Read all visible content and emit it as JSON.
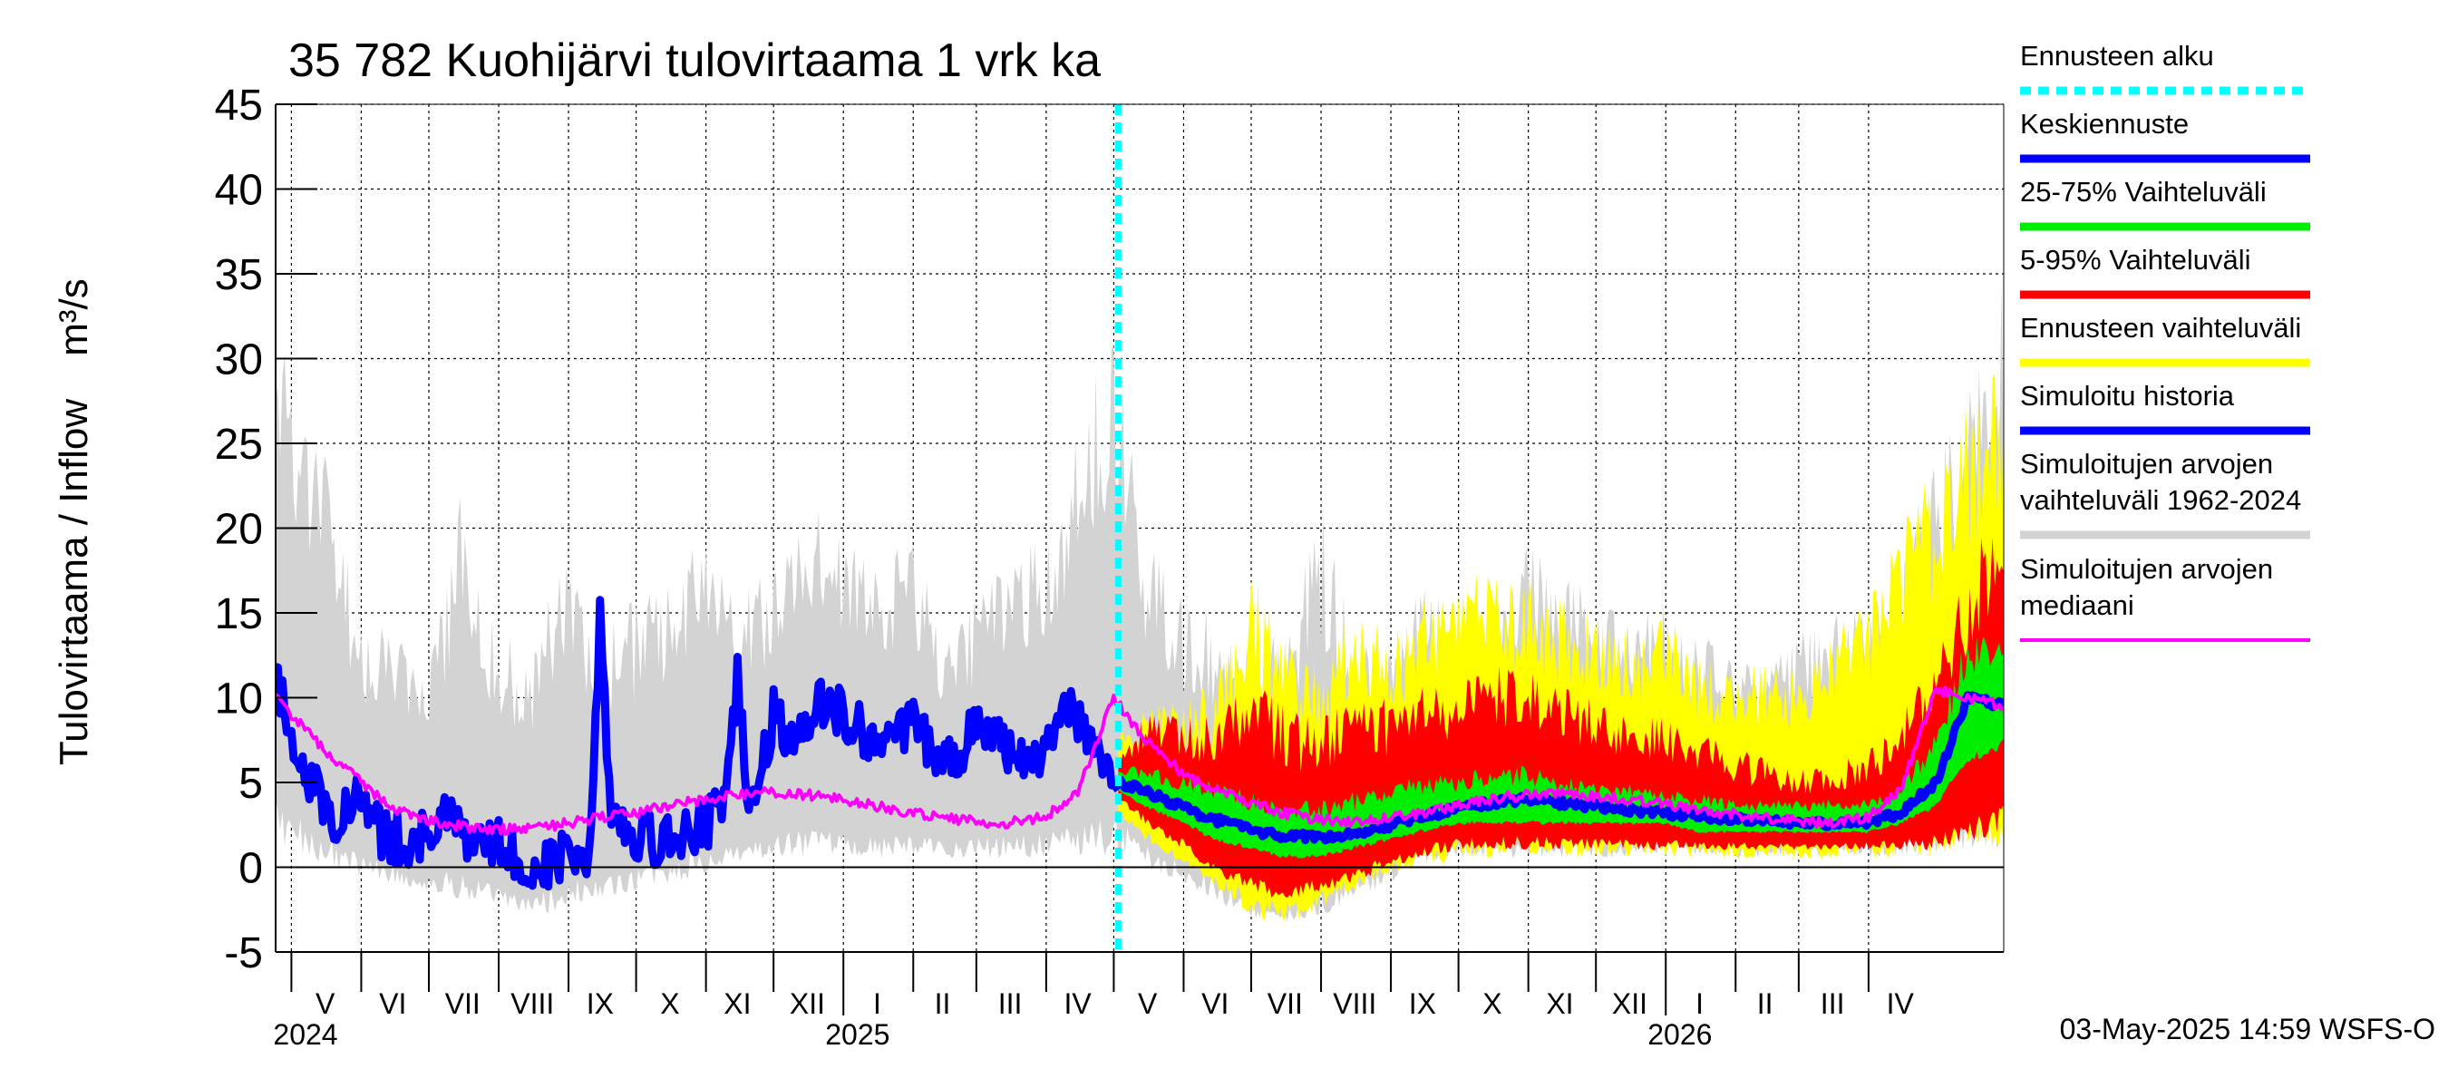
{
  "chart_data": {
    "type": "area",
    "title": "35 782 Kuohijärvi tulovirtaama 1 vrk ka",
    "ylabel": "Tulovirtaama / Inflow",
    "yunit": "m³/s",
    "ylim": [
      -5,
      45
    ],
    "yticks": [
      -5,
      0,
      5,
      10,
      15,
      20,
      25,
      30,
      35,
      40,
      45
    ],
    "grid": true,
    "legend_position": "right",
    "xlim": [
      "2024-04-24",
      "2026-05-31"
    ],
    "forecast_start": "2025-05-03",
    "month_labels": [
      {
        "label": "V",
        "date": "2024-05-16"
      },
      {
        "label": "VI",
        "date": "2024-06-15"
      },
      {
        "label": "VII",
        "date": "2024-07-16"
      },
      {
        "label": "VIII",
        "date": "2024-08-16"
      },
      {
        "label": "IX",
        "date": "2024-09-15"
      },
      {
        "label": "X",
        "date": "2024-10-16"
      },
      {
        "label": "XI",
        "date": "2024-11-15"
      },
      {
        "label": "XII",
        "date": "2024-12-16"
      },
      {
        "label": "I",
        "date": "2025-01-16"
      },
      {
        "label": "II",
        "date": "2025-02-14"
      },
      {
        "label": "III",
        "date": "2025-03-16"
      },
      {
        "label": "IV",
        "date": "2025-04-15"
      },
      {
        "label": "V",
        "date": "2025-05-16"
      },
      {
        "label": "VI",
        "date": "2025-06-15"
      },
      {
        "label": "VII",
        "date": "2025-07-16"
      },
      {
        "label": "VIII",
        "date": "2025-08-16"
      },
      {
        "label": "IX",
        "date": "2025-09-15"
      },
      {
        "label": "X",
        "date": "2025-10-16"
      },
      {
        "label": "XI",
        "date": "2025-11-15"
      },
      {
        "label": "XII",
        "date": "2025-12-16"
      },
      {
        "label": "I",
        "date": "2026-01-16"
      },
      {
        "label": "II",
        "date": "2026-02-14"
      },
      {
        "label": "III",
        "date": "2026-03-16"
      },
      {
        "label": "IV",
        "date": "2026-04-15"
      }
    ],
    "year_labels": [
      {
        "label": "2024",
        "date": "2024-05-01"
      },
      {
        "label": "2025",
        "date": "2025-01-01"
      },
      {
        "label": "2026",
        "date": "2026-01-01"
      }
    ],
    "series": [
      {
        "name": "Simuloitujen arvojen vaihteluväli 1962-2024",
        "color": "#d3d3d3",
        "style": "band",
        "x": [
          "2024-04-24",
          "2024-05-01",
          "2024-05-15",
          "2024-06-01",
          "2024-06-15",
          "2024-07-01",
          "2024-07-15",
          "2024-08-01",
          "2024-08-15",
          "2024-09-01",
          "2024-09-15",
          "2024-10-01",
          "2024-10-15",
          "2024-11-01",
          "2024-11-15",
          "2024-12-01",
          "2024-12-15",
          "2025-01-01",
          "2025-01-15",
          "2025-02-01",
          "2025-02-15",
          "2025-03-01",
          "2025-03-15",
          "2025-04-01",
          "2025-04-15",
          "2025-05-01",
          "2025-05-15",
          "2025-06-01",
          "2025-06-15",
          "2025-07-01",
          "2025-07-15",
          "2025-08-01",
          "2025-08-15",
          "2025-09-01",
          "2025-09-15",
          "2025-10-01",
          "2025-10-15",
          "2025-11-01",
          "2025-11-15",
          "2025-12-01",
          "2025-12-15",
          "2026-01-01",
          "2026-01-15",
          "2026-02-01",
          "2026-02-15",
          "2026-03-01",
          "2026-03-15",
          "2026-04-01",
          "2026-04-15",
          "2026-05-01",
          "2026-05-15",
          "2026-05-31"
        ],
        "low": [
          1.5,
          1.0,
          0.0,
          -0.5,
          -1.0,
          -1.5,
          -2.0,
          -2.5,
          -3.0,
          -2.5,
          -2.0,
          -1.5,
          -1.0,
          -0.5,
          0.0,
          0.5,
          0.5,
          0.5,
          0.5,
          0.5,
          0.5,
          0.5,
          0.5,
          0.5,
          0.5,
          0.5,
          0.0,
          -1.0,
          -2.0,
          -3.0,
          -3.5,
          -3.0,
          -2.0,
          -1.0,
          0.0,
          0.5,
          0.5,
          0.5,
          0.5,
          0.5,
          0.5,
          0.5,
          0.5,
          0.5,
          0.5,
          0.5,
          0.5,
          0.5,
          0.5,
          0.5,
          1.0,
          1.0
        ],
        "high": [
          35.0,
          31.0,
          25.0,
          15.0,
          14.0,
          12.0,
          22.0,
          14.0,
          13.0,
          20.0,
          14.0,
          16.0,
          17.0,
          20.0,
          16.0,
          18.0,
          22.0,
          20.0,
          18.0,
          20.0,
          14.0,
          16.0,
          18.0,
          20.0,
          26.0,
          33.0,
          20.0,
          16.0,
          15.0,
          14.0,
          14.0,
          22.0,
          14.0,
          13.0,
          18.0,
          14.0,
          16.0,
          20.0,
          18.0,
          16.0,
          15.0,
          16.0,
          14.0,
          13.0,
          12.0,
          14.0,
          15.0,
          16.0,
          18.0,
          24.0,
          28.0,
          35.0
        ]
      },
      {
        "name": "Ennusteen vaihteluväli",
        "color": "#ffff00",
        "style": "band",
        "x": [
          "2025-05-03",
          "2025-05-15",
          "2025-06-01",
          "2025-06-15",
          "2025-07-01",
          "2025-07-15",
          "2025-08-01",
          "2025-08-15",
          "2025-09-01",
          "2025-09-15",
          "2025-10-01",
          "2025-10-15",
          "2025-11-01",
          "2025-11-15",
          "2025-12-01",
          "2025-12-15",
          "2026-01-01",
          "2026-01-15",
          "2026-02-01",
          "2026-02-15",
          "2026-03-01",
          "2026-03-15",
          "2026-04-01",
          "2026-04-15",
          "2026-05-01",
          "2026-05-15",
          "2026-05-31"
        ],
        "low": [
          3.0,
          1.5,
          0.0,
          -1.5,
          -3.0,
          -3.5,
          -2.5,
          -1.5,
          -0.5,
          0.0,
          0.5,
          0.5,
          0.5,
          0.5,
          0.5,
          0.5,
          0.5,
          0.5,
          0.5,
          0.5,
          0.5,
          0.5,
          0.5,
          0.5,
          0.5,
          1.0,
          1.0
        ],
        "high": [
          8.0,
          10.0,
          10.0,
          11.0,
          18.0,
          14.0,
          12.0,
          16.0,
          14.0,
          16.0,
          17.0,
          18.0,
          17.0,
          16.0,
          15.0,
          14.0,
          15.0,
          13.0,
          12.0,
          12.0,
          12.0,
          14.0,
          16.0,
          20.0,
          24.0,
          28.0,
          30.0
        ]
      },
      {
        "name": "5-95% Vaihteluväli",
        "color": "#ff0000",
        "style": "band",
        "x": [
          "2025-05-03",
          "2025-05-15",
          "2025-06-01",
          "2025-06-15",
          "2025-07-01",
          "2025-07-15",
          "2025-08-01",
          "2025-08-15",
          "2025-09-01",
          "2025-09-15",
          "2025-10-01",
          "2025-10-15",
          "2025-11-01",
          "2025-11-15",
          "2025-12-01",
          "2025-12-15",
          "2026-01-01",
          "2026-01-15",
          "2026-02-01",
          "2026-02-15",
          "2026-03-01",
          "2026-03-15",
          "2026-04-01",
          "2026-04-15",
          "2026-05-01",
          "2026-05-15",
          "2026-05-31"
        ],
        "low": [
          4.0,
          2.5,
          1.0,
          -0.5,
          -1.5,
          -2.0,
          -1.5,
          -1.0,
          0.0,
          0.5,
          1.0,
          1.0,
          1.0,
          1.0,
          1.0,
          1.0,
          1.0,
          1.0,
          1.0,
          1.0,
          1.0,
          1.0,
          1.0,
          1.0,
          1.0,
          1.5,
          2.0
        ],
        "high": [
          7.0,
          9.0,
          9.0,
          9.0,
          11.0,
          10.0,
          9.0,
          10.0,
          10.0,
          11.0,
          11.0,
          12.0,
          12.0,
          11.0,
          10.0,
          9.0,
          9.0,
          8.0,
          7.0,
          6.5,
          6.0,
          6.0,
          7.0,
          9.0,
          13.0,
          18.0,
          24.0
        ]
      },
      {
        "name": "25-75% Vaihteluväli",
        "color": "#00ee00",
        "style": "band",
        "x": [
          "2025-05-03",
          "2025-05-15",
          "2025-06-01",
          "2025-06-15",
          "2025-07-01",
          "2025-07-15",
          "2025-08-01",
          "2025-08-15",
          "2025-09-01",
          "2025-09-15",
          "2025-10-01",
          "2025-10-15",
          "2025-11-01",
          "2025-11-15",
          "2025-12-01",
          "2025-12-15",
          "2026-01-01",
          "2026-01-15",
          "2026-02-01",
          "2026-02-15",
          "2026-03-01",
          "2026-03-15",
          "2026-04-01",
          "2026-04-15",
          "2026-05-01",
          "2026-05-15",
          "2026-05-31"
        ],
        "low": [
          4.5,
          3.5,
          2.5,
          1.5,
          1.0,
          0.5,
          0.5,
          1.0,
          1.5,
          2.0,
          2.5,
          2.5,
          2.5,
          2.5,
          2.5,
          2.5,
          2.5,
          2.0,
          2.0,
          2.0,
          2.0,
          2.0,
          2.0,
          2.5,
          3.5,
          6.0,
          7.0
        ],
        "high": [
          6.0,
          6.0,
          5.5,
          5.0,
          4.5,
          4.0,
          4.0,
          4.5,
          5.0,
          5.5,
          5.5,
          6.0,
          6.0,
          5.5,
          5.0,
          5.0,
          4.5,
          4.5,
          4.0,
          4.0,
          4.0,
          4.0,
          4.0,
          5.0,
          8.0,
          14.0,
          14.0
        ]
      },
      {
        "name": "Keskiennuste",
        "color": "#0000ff",
        "style": "line",
        "x": [
          "2025-05-03",
          "2025-05-15",
          "2025-06-01",
          "2025-06-15",
          "2025-07-01",
          "2025-07-15",
          "2025-08-01",
          "2025-08-15",
          "2025-09-01",
          "2025-09-15",
          "2025-10-01",
          "2025-10-15",
          "2025-11-01",
          "2025-11-15",
          "2025-12-01",
          "2025-12-15",
          "2026-01-01",
          "2026-01-15",
          "2026-02-01",
          "2026-02-15",
          "2026-03-01",
          "2026-03-15",
          "2026-04-01",
          "2026-04-15",
          "2026-05-01",
          "2026-05-15",
          "2026-05-31"
        ],
        "y": [
          5.0,
          4.5,
          3.5,
          2.8,
          2.2,
          1.8,
          1.8,
          2.0,
          2.5,
          3.0,
          3.5,
          3.8,
          4.0,
          3.8,
          3.6,
          3.4,
          3.2,
          3.0,
          2.8,
          2.7,
          2.6,
          2.6,
          2.7,
          3.2,
          5.0,
          10.0,
          9.5
        ]
      },
      {
        "name": "Simuloitu historia",
        "color": "#0000ff",
        "style": "line",
        "x": [
          "2024-04-24",
          "2024-05-01",
          "2024-05-10",
          "2024-05-20",
          "2024-06-01",
          "2024-06-10",
          "2024-06-20",
          "2024-07-01",
          "2024-07-10",
          "2024-07-20",
          "2024-08-01",
          "2024-08-10",
          "2024-08-20",
          "2024-09-01",
          "2024-09-10",
          "2024-09-15",
          "2024-09-20",
          "2024-10-01",
          "2024-10-10",
          "2024-10-20",
          "2024-11-01",
          "2024-11-10",
          "2024-11-15",
          "2024-11-20",
          "2024-12-01",
          "2024-12-10",
          "2024-12-20",
          "2025-01-01",
          "2025-01-10",
          "2025-01-20",
          "2025-02-01",
          "2025-02-10",
          "2025-02-20",
          "2025-03-01",
          "2025-03-10",
          "2025-03-20",
          "2025-04-01",
          "2025-04-10",
          "2025-04-20",
          "2025-05-03"
        ],
        "y": [
          11.0,
          8.0,
          5.0,
          3.0,
          4.0,
          2.0,
          1.5,
          2.0,
          3.0,
          1.0,
          1.5,
          0.5,
          0.0,
          1.0,
          0.5,
          15.0,
          3.0,
          2.0,
          1.5,
          2.0,
          2.5,
          4.0,
          11.0,
          3.0,
          9.0,
          7.0,
          10.0,
          9.0,
          8.0,
          7.0,
          8.5,
          7.0,
          6.0,
          9.0,
          7.5,
          6.0,
          7.0,
          10.0,
          8.0,
          5.0
        ]
      },
      {
        "name": "Simuloitujen arvojen mediaani",
        "color": "#ff00ff",
        "style": "line",
        "x": [
          "2024-04-24",
          "2024-05-01",
          "2024-05-15",
          "2024-06-01",
          "2024-06-15",
          "2024-07-01",
          "2024-07-15",
          "2024-08-01",
          "2024-08-15",
          "2024-09-01",
          "2024-09-15",
          "2024-10-01",
          "2024-10-15",
          "2024-11-01",
          "2024-11-15",
          "2024-12-01",
          "2024-12-15",
          "2025-01-01",
          "2025-01-15",
          "2025-02-01",
          "2025-02-15",
          "2025-03-01",
          "2025-03-15",
          "2025-04-01",
          "2025-04-15",
          "2025-05-01",
          "2025-05-15",
          "2025-06-01",
          "2025-06-15",
          "2025-07-01",
          "2025-07-15",
          "2025-08-01",
          "2025-08-15",
          "2025-09-01",
          "2025-09-15",
          "2025-10-01",
          "2025-10-15",
          "2025-11-01",
          "2025-11-15",
          "2025-12-01",
          "2025-12-15",
          "2026-01-01",
          "2026-01-15",
          "2026-02-01",
          "2026-02-15",
          "2026-03-01",
          "2026-03-15",
          "2026-04-01",
          "2026-04-15",
          "2026-05-01",
          "2026-05-15",
          "2026-05-31"
        ],
        "y": [
          10.0,
          9.0,
          7.0,
          5.0,
          3.5,
          2.8,
          2.4,
          2.2,
          2.3,
          2.6,
          2.9,
          3.2,
          3.6,
          4.0,
          4.3,
          4.4,
          4.3,
          4.0,
          3.6,
          3.2,
          2.9,
          2.7,
          2.6,
          3.0,
          4.5,
          10.0,
          7.5,
          5.5,
          4.5,
          3.8,
          3.2,
          2.8,
          2.7,
          2.9,
          3.2,
          3.6,
          4.0,
          4.3,
          4.4,
          4.2,
          4.0,
          3.7,
          3.4,
          3.1,
          2.9,
          2.7,
          2.6,
          3.0,
          4.5,
          10.5,
          10.0,
          9.5
        ]
      }
    ],
    "legend": [
      {
        "label": "Ennusteen alku",
        "color": "#00ffff",
        "style": "dashed"
      },
      {
        "label": "Keskiennuste",
        "color": "#0000ff",
        "style": "line"
      },
      {
        "label": "25-75% Vaihteluväli",
        "color": "#00ee00",
        "style": "line"
      },
      {
        "label": "5-95% Vaihteluväli",
        "color": "#ff0000",
        "style": "line"
      },
      {
        "label": "Ennusteen vaihteluväli",
        "color": "#ffff00",
        "style": "line"
      },
      {
        "label": "Simuloitu historia",
        "color": "#0000ff",
        "style": "line"
      },
      {
        "label": "Simuloitujen arvojen\nvaihteluväli 1962-2024",
        "color": "#d3d3d3",
        "style": "line"
      },
      {
        "label": "Simuloitujen arvojen\nmediaani",
        "color": "#ff00ff",
        "style": "line"
      }
    ],
    "footer": "03-May-2025 14:59 WSFS-O"
  }
}
